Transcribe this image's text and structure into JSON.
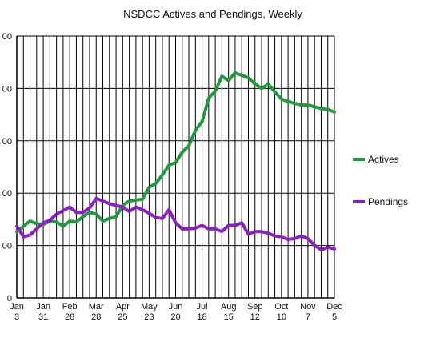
{
  "chart_data": {
    "type": "line",
    "title": "NSDCC Actives and Pendings, Weekly",
    "xlabel": "",
    "ylabel": "",
    "ylim": [
      0,
      300
    ],
    "y_ticks": [
      "0",
      "00",
      "00",
      "00",
      "00",
      "00"
    ],
    "x_tick_labels": [
      {
        "line1": "Jan",
        "line2": "3"
      },
      {
        "line1": "Jan",
        "line2": "31"
      },
      {
        "line1": "Feb",
        "line2": "28"
      },
      {
        "line1": "Mar",
        "line2": "28"
      },
      {
        "line1": "Apr",
        "line2": "25"
      },
      {
        "line1": "May",
        "line2": "23"
      },
      {
        "line1": "Jun",
        "line2": "20"
      },
      {
        "line1": "Jul",
        "line2": "18"
      },
      {
        "line1": "Aug",
        "line2": "15"
      },
      {
        "line1": "Sep",
        "line2": "12"
      },
      {
        "line1": "Oct",
        "line2": "10"
      },
      {
        "line1": "Nov",
        "line2": "7"
      },
      {
        "line1": "Dec",
        "line2": "5"
      }
    ],
    "weeks": 49,
    "grid": "vertical weekly lines, horizontal major lines",
    "legend_position": "right",
    "series": [
      {
        "name": "Actives",
        "color": "#1e9a3c",
        "values": [
          76,
          82,
          88,
          85,
          84,
          88,
          87,
          82,
          88,
          87,
          93,
          98,
          96,
          88,
          91,
          93,
          106,
          111,
          112,
          113,
          127,
          131,
          141,
          152,
          155,
          167,
          174,
          192,
          202,
          229,
          237,
          254,
          249,
          258,
          255,
          252,
          245,
          240,
          245,
          236,
          228,
          225,
          223,
          221,
          221,
          219,
          217,
          216,
          213
        ]
      },
      {
        "name": "Pendings",
        "color": "#8b1fc4",
        "values": [
          82,
          70,
          72,
          79,
          86,
          89,
          96,
          100,
          104,
          98,
          98,
          103,
          114,
          111,
          108,
          106,
          104,
          99,
          104,
          101,
          97,
          92,
          91,
          101,
          86,
          79,
          79,
          80,
          83,
          79,
          79,
          76,
          83,
          83,
          86,
          73,
          76,
          76,
          74,
          71,
          70,
          67,
          68,
          71,
          68,
          60,
          55,
          58,
          56
        ]
      }
    ]
  }
}
